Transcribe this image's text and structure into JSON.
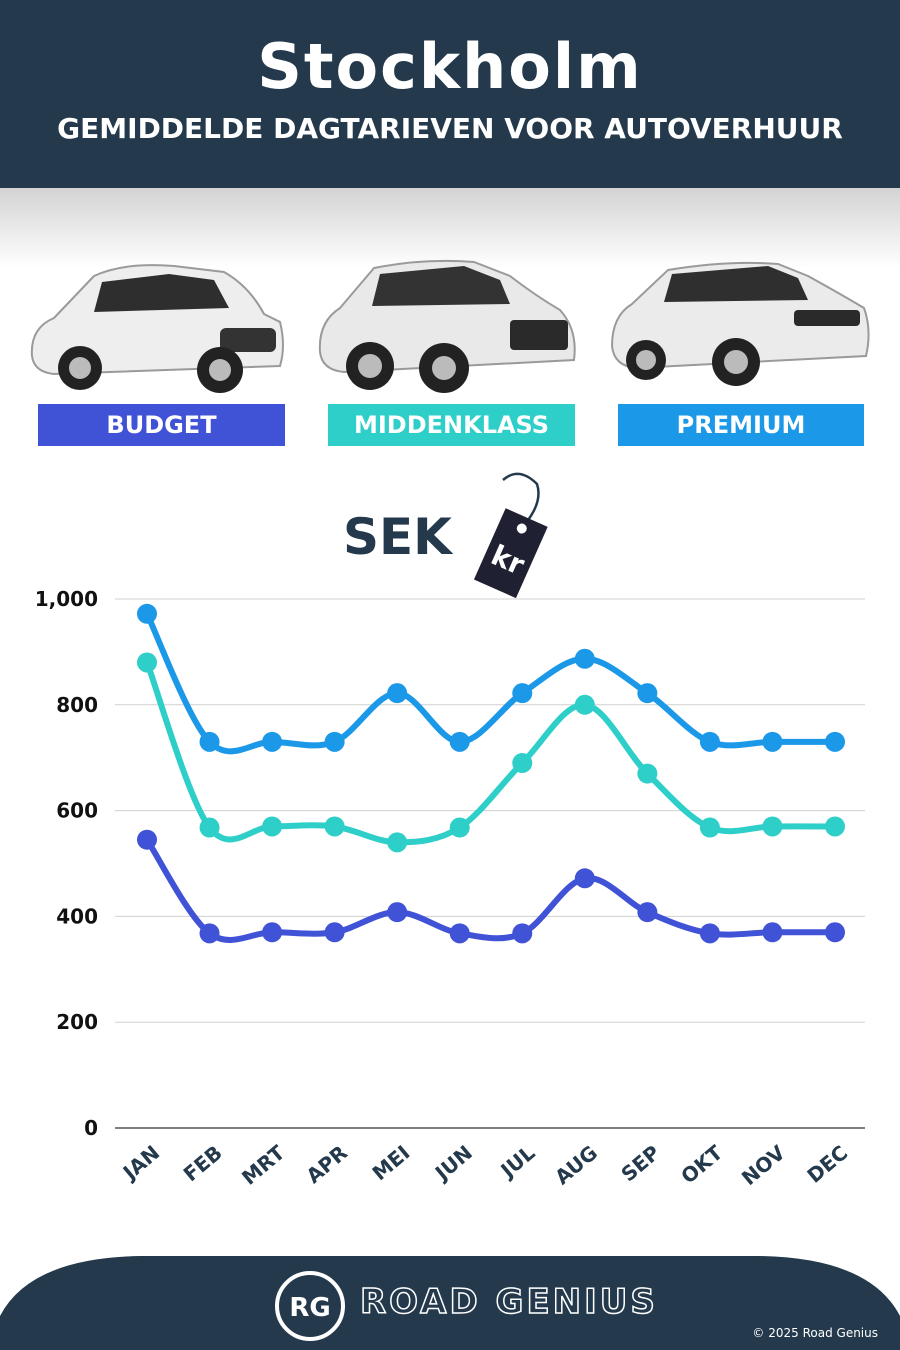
{
  "header": {
    "city": "Stockholm",
    "subtitle": "GEMIDDELDE DAGTARIEVEN VOOR AUTOVERHUUR"
  },
  "categories_badges": [
    {
      "label": "BUDGET",
      "color": "#4052d6"
    },
    {
      "label": "MIDDENKLASS",
      "color": "#2fcfc9"
    },
    {
      "label": "PREMIUM",
      "color": "#1b98e8"
    }
  ],
  "currency": {
    "label": "SEK",
    "tag_text": "kr"
  },
  "chart_data": {
    "type": "line",
    "categories": [
      "JAN",
      "FEB",
      "MRT",
      "APR",
      "MEI",
      "JUN",
      "JUL",
      "AUG",
      "SEP",
      "OKT",
      "NOV",
      "DEC"
    ],
    "series": [
      {
        "name": "BUDGET",
        "color": "#4052d6",
        "values": [
          545,
          368,
          370,
          370,
          408,
          368,
          368,
          472,
          408,
          368,
          370,
          370
        ]
      },
      {
        "name": "MIDDENKLASS",
        "color": "#2fcfc9",
        "values": [
          880,
          568,
          570,
          570,
          540,
          568,
          690,
          800,
          670,
          568,
          570,
          570
        ]
      },
      {
        "name": "PREMIUM",
        "color": "#1b98e8",
        "values": [
          972,
          730,
          730,
          730,
          822,
          730,
          822,
          887,
          822,
          730,
          730,
          730
        ]
      }
    ],
    "yticks": [
      "0",
      "200",
      "400",
      "600",
      "800",
      "1,000"
    ],
    "ylim": [
      0,
      1000
    ],
    "grid": true
  },
  "footer": {
    "brand": "ROAD GENIUS",
    "logo_text": "RG",
    "copyright": "© 2025 Road Genius",
    "background": "#243a4c"
  }
}
